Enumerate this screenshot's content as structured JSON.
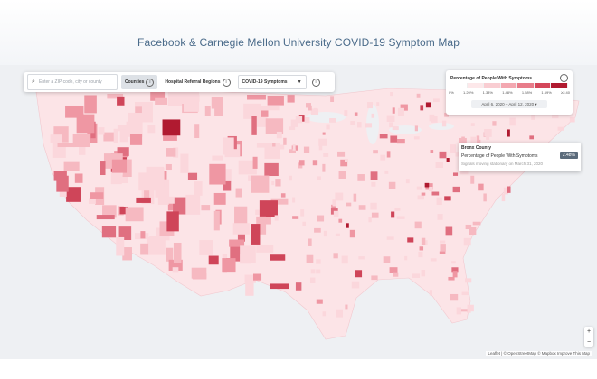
{
  "header": {
    "title": "Facebook & Carnegie Mellon University COVID-19 Symptom Map"
  },
  "controls": {
    "search_placeholder": "Enter a ZIP code, city or county",
    "tabs": [
      {
        "label": "Counties",
        "active": true
      },
      {
        "label": "Hospital Referral Regions",
        "active": false
      }
    ],
    "dataset_select": {
      "value": "COVID-19 Symptoms"
    }
  },
  "legend": {
    "title": "Percentage of People With Symptoms",
    "ticks": [
      "0%",
      "1.20%",
      "1.33%",
      "1.48%",
      "1.58%",
      "1.69%",
      "≥2.40"
    ],
    "colors": [
      "#ffffff",
      "#fde8ea",
      "#f9cdd2",
      "#f3a8b1",
      "#e87c8a",
      "#d4475a",
      "#b01a30"
    ],
    "date_range": "April 6, 2020 – April 12, 2020 ▾"
  },
  "tooltip": {
    "county": "Bronx County",
    "metric_label": "Percentage of People With Symptoms",
    "value": "2.48%",
    "note": "Signals moving stationary on March 31, 2020"
  },
  "map": {
    "zoom_in": "+",
    "zoom_out": "−",
    "attribution": "Leaflet | © OpenStreetMap © Mapbox Improve This Map",
    "accent": "#b01a30",
    "land": "#fce4e7",
    "water": "#eef0f3"
  }
}
